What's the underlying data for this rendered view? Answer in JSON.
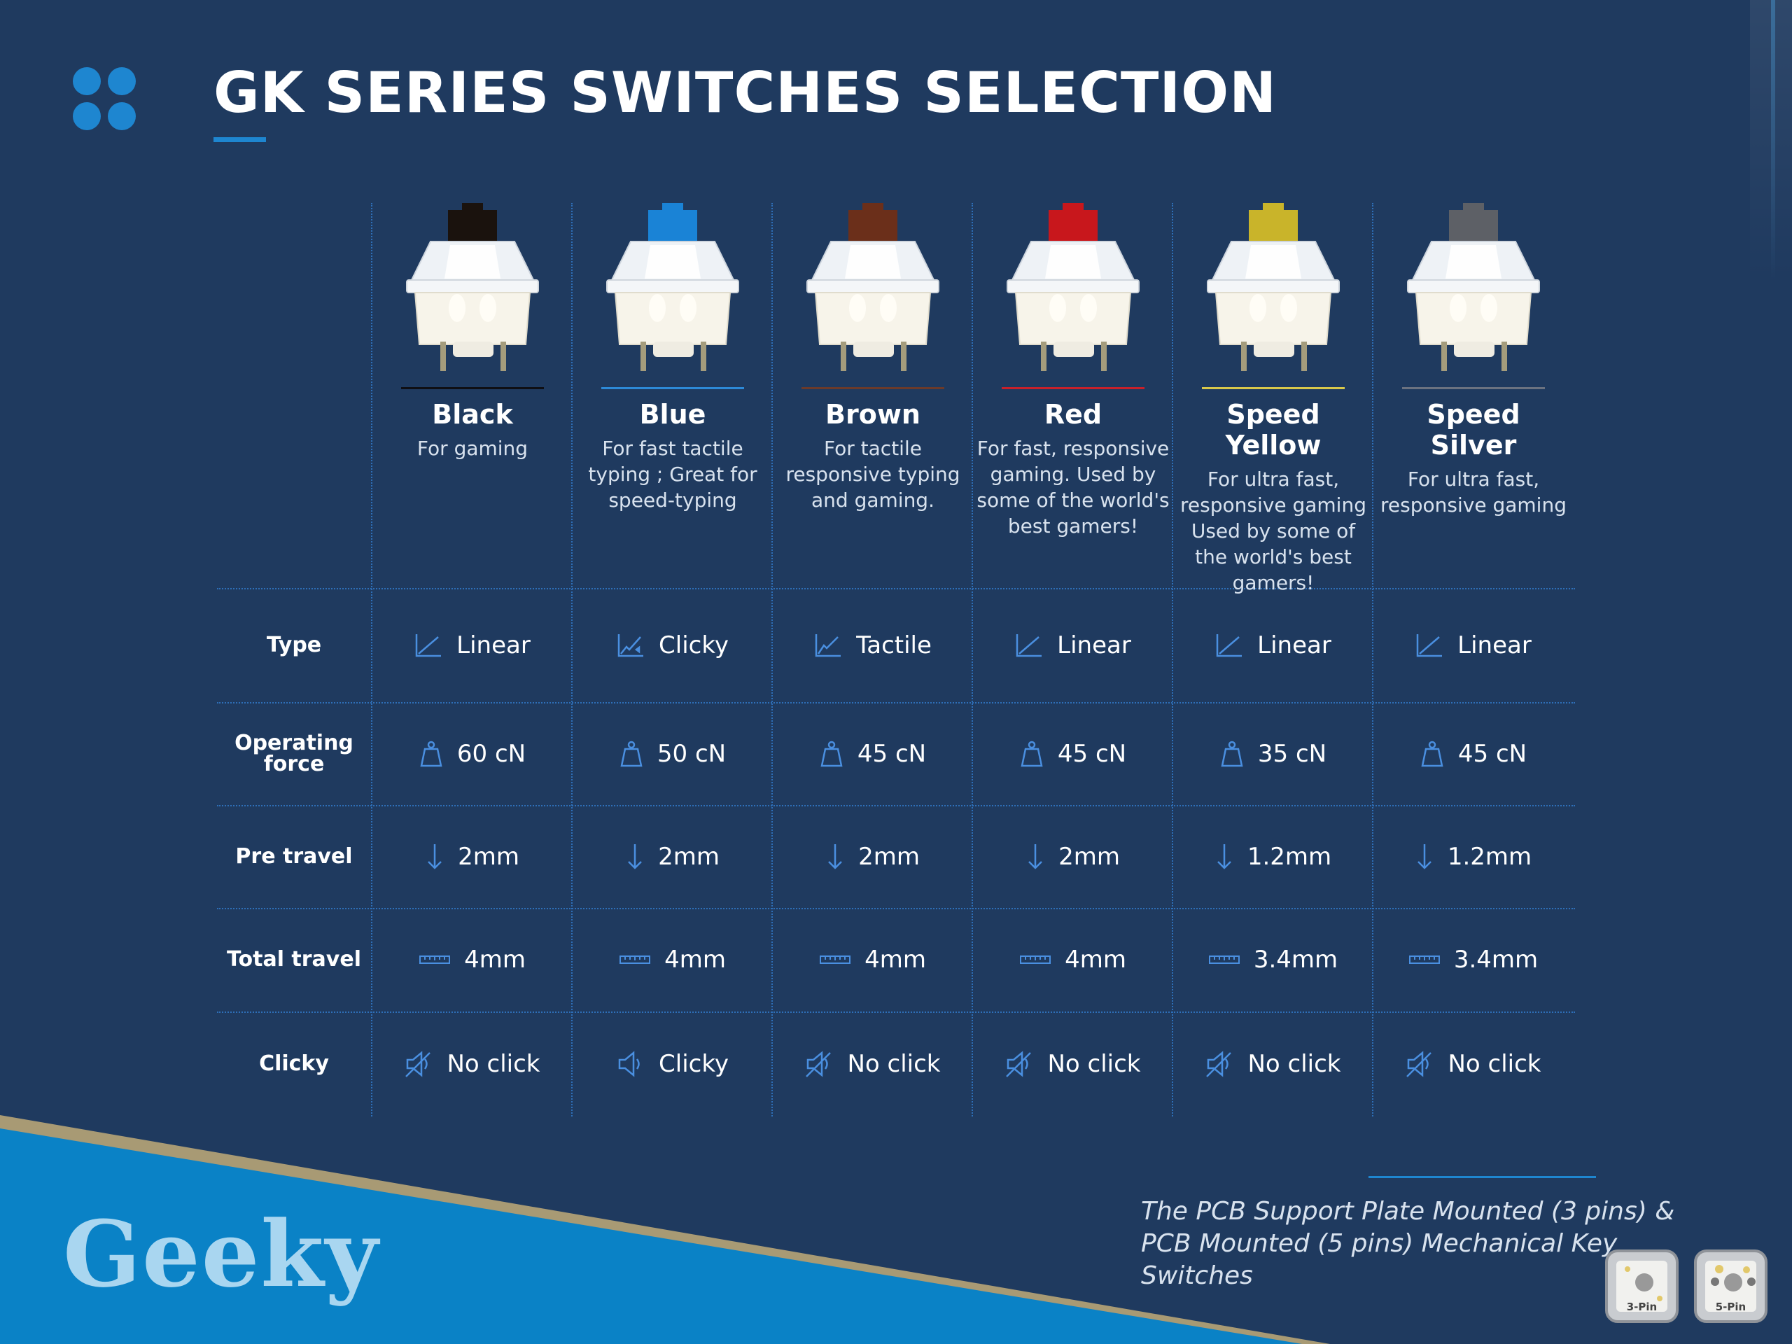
{
  "header": {
    "title": "GK SERIES SWITCHES SELECTION"
  },
  "brand": {
    "name": "Geeky"
  },
  "colors": {
    "background": "#1f3a5f",
    "accent": "#1e86d0",
    "band": "#0a82c6",
    "band_edge": "#a89a74",
    "brand_text": "#a9d6f0"
  },
  "rows": [
    {
      "key": "type",
      "label": "Type",
      "icon": "linear-graph-icon"
    },
    {
      "key": "force",
      "label": "Operating force",
      "icon": "weight-icon"
    },
    {
      "key": "pre",
      "label": "Pre travel",
      "icon": "arrow-down-icon"
    },
    {
      "key": "total",
      "label": "Total travel",
      "icon": "ruler-icon"
    },
    {
      "key": "clicky",
      "label": "Clicky",
      "icon": "speaker-icon"
    }
  ],
  "switches": [
    {
      "name": "Black",
      "desc": "For gaming",
      "stem": "#1a120d",
      "rule": "#0f0f14",
      "type": "Linear",
      "force": "60 cN",
      "pre": "2mm",
      "total": "4mm",
      "clicky": "No click"
    },
    {
      "name": "Blue",
      "desc": "For fast tactile typing ; Great for speed-typing",
      "stem": "#1a83d6",
      "rule": "#2d8ad8",
      "type": "Clicky",
      "force": "50 cN",
      "pre": "2mm",
      "total": "4mm",
      "clicky": "Clicky"
    },
    {
      "name": "Brown",
      "desc": "For tactile responsive typing and gaming.",
      "stem": "#6b2f1a",
      "rule": "#6b3a2a",
      "type": "Tactile",
      "force": "45 cN",
      "pre": "2mm",
      "total": "4mm",
      "clicky": "No click"
    },
    {
      "name": "Red",
      "desc": "For fast, responsive gaming. Used by some of the world's best gamers!",
      "stem": "#c8171c",
      "rule": "#c8202a",
      "type": "Linear",
      "force": "45 cN",
      "pre": "2mm",
      "total": "4mm",
      "clicky": "No click"
    },
    {
      "name": "Speed Yellow",
      "desc": "For ultra fast, responsive gaming Used by some of the world's best gamers!",
      "stem": "#c9b42a",
      "rule": "#d9c84a",
      "type": "Linear",
      "force": "35 cN",
      "pre": "1.2mm",
      "total": "3.4mm",
      "clicky": "No click"
    },
    {
      "name": "Speed Silver",
      "desc": "For ultra fast, responsive gaming",
      "stem": "#5d6066",
      "rule": "#6b7280",
      "type": "Linear",
      "force": "45 cN",
      "pre": "1.2mm",
      "total": "3.4mm",
      "clicky": "No click"
    }
  ],
  "footnote": {
    "text": "The PCB Support Plate Mounted (3 pins) & PCB Mounted (5 pins) Mechanical Key Switches"
  },
  "pins": [
    {
      "label": "3-Pin"
    },
    {
      "label": "5-Pin"
    }
  ]
}
